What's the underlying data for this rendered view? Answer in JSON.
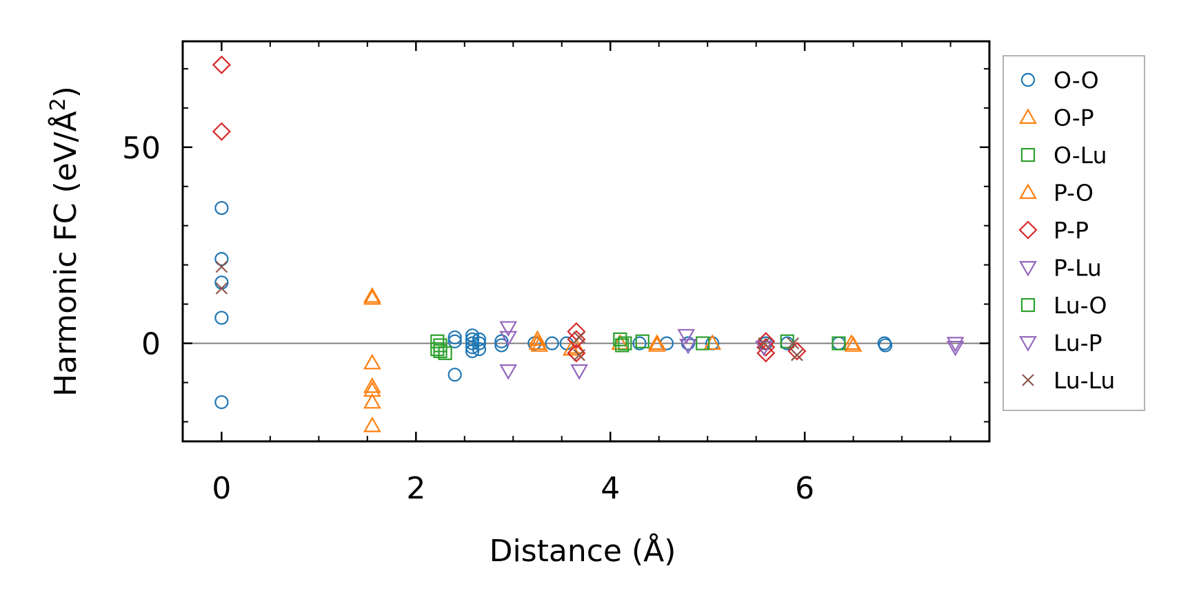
{
  "chart_data": {
    "type": "scatter",
    "xlabel": "Distance (Å)",
    "ylabel_main": "Harmonic FC (eV/Å",
    "ylabel_sup": "2",
    "ylabel_close": ")",
    "xlim": [
      -0.4,
      7.9
    ],
    "ylim": [
      -25,
      77
    ],
    "xticks": [
      0,
      2,
      4,
      6
    ],
    "xtick_labels": [
      "0",
      "2",
      "4",
      "6"
    ],
    "yticks": [
      0,
      50
    ],
    "ytick_labels": [
      "0",
      "50"
    ],
    "zero_line": true,
    "legend_position": "outside-right",
    "series": [
      {
        "name": "O-O",
        "marker": "circle",
        "color": "#1f77b4",
        "points": [
          [
            0,
            34.5
          ],
          [
            0,
            21.5
          ],
          [
            0,
            15.5
          ],
          [
            0,
            6.5
          ],
          [
            0,
            -15
          ],
          [
            2.4,
            -8
          ],
          [
            2.4,
            1.5
          ],
          [
            2.4,
            0.5
          ],
          [
            2.58,
            2
          ],
          [
            2.58,
            1
          ],
          [
            2.58,
            0
          ],
          [
            2.58,
            -1
          ],
          [
            2.58,
            -2
          ],
          [
            2.65,
            1
          ],
          [
            2.65,
            0
          ],
          [
            2.65,
            -1.5
          ],
          [
            2.88,
            0.5
          ],
          [
            2.88,
            -0.5
          ],
          [
            3.22,
            0
          ],
          [
            3.4,
            0
          ],
          [
            3.55,
            0
          ],
          [
            4.3,
            0
          ],
          [
            4.58,
            0
          ],
          [
            4.8,
            0
          ],
          [
            5.05,
            0
          ],
          [
            5.6,
            0
          ],
          [
            5.82,
            0
          ],
          [
            6.35,
            0
          ],
          [
            6.82,
            0
          ],
          [
            6.83,
            -0.5
          ]
        ]
      },
      {
        "name": "O-P",
        "marker": "triangle-up",
        "color": "#ff7f0e",
        "points": [
          [
            1.55,
            12
          ],
          [
            1.55,
            11.5
          ],
          [
            1.55,
            -5
          ],
          [
            1.55,
            -11
          ],
          [
            1.55,
            -12
          ],
          [
            1.55,
            -15
          ],
          [
            1.55,
            -21
          ],
          [
            3.25,
            1
          ],
          [
            3.27,
            -0.5
          ],
          [
            3.6,
            -1.5
          ],
          [
            4.1,
            0
          ],
          [
            4.48,
            0
          ],
          [
            5.05,
            0
          ],
          [
            6.48,
            0
          ]
        ]
      },
      {
        "name": "O-Lu",
        "marker": "square",
        "color": "#2ca02c",
        "points": [
          [
            2.22,
            0.5
          ],
          [
            2.22,
            -1.5
          ],
          [
            2.25,
            -2
          ],
          [
            2.3,
            -2.5
          ],
          [
            4.1,
            1
          ],
          [
            4.12,
            -0.5
          ],
          [
            4.33,
            0.5
          ],
          [
            4.95,
            0
          ],
          [
            5.82,
            0.5
          ],
          [
            6.35,
            0
          ]
        ]
      },
      {
        "name": "P-O",
        "marker": "triangle-up",
        "color": "#ff7f0e",
        "points": [
          [
            3.25,
            0
          ],
          [
            3.65,
            -1
          ],
          [
            4.48,
            -0.5
          ],
          [
            6.5,
            -0.5
          ]
        ]
      },
      {
        "name": "P-P",
        "marker": "diamond",
        "color": "#d62728",
        "points": [
          [
            0,
            71
          ],
          [
            0,
            54
          ],
          [
            3.65,
            3
          ],
          [
            3.65,
            1
          ],
          [
            3.65,
            -2.5
          ],
          [
            5.6,
            0.5
          ],
          [
            5.6,
            -1
          ],
          [
            5.6,
            -2.5
          ],
          [
            5.92,
            -2
          ]
        ]
      },
      {
        "name": "P-Lu",
        "marker": "triangle-down",
        "color": "#9467bd",
        "points": [
          [
            2.95,
            4
          ],
          [
            2.95,
            1.5
          ],
          [
            2.95,
            -7
          ],
          [
            3.68,
            -7
          ],
          [
            4.78,
            2
          ],
          [
            4.8,
            -0.5
          ],
          [
            5.58,
            -1
          ]
        ]
      },
      {
        "name": "Lu-O",
        "marker": "square",
        "color": "#2ca02c",
        "points": [
          [
            2.25,
            -0.5
          ],
          [
            4.15,
            0
          ]
        ]
      },
      {
        "name": "Lu-P",
        "marker": "triangle-down",
        "color": "#9467bd",
        "points": [
          [
            7.55,
            0
          ],
          [
            7.55,
            -1
          ]
        ]
      },
      {
        "name": "Lu-Lu",
        "marker": "x",
        "color": "#8c564b",
        "points": [
          [
            0,
            19.5
          ],
          [
            0,
            14
          ],
          [
            3.68,
            1.5
          ],
          [
            3.68,
            -3
          ],
          [
            5.58,
            0
          ],
          [
            5.88,
            0
          ],
          [
            5.92,
            -3
          ]
        ]
      }
    ]
  }
}
